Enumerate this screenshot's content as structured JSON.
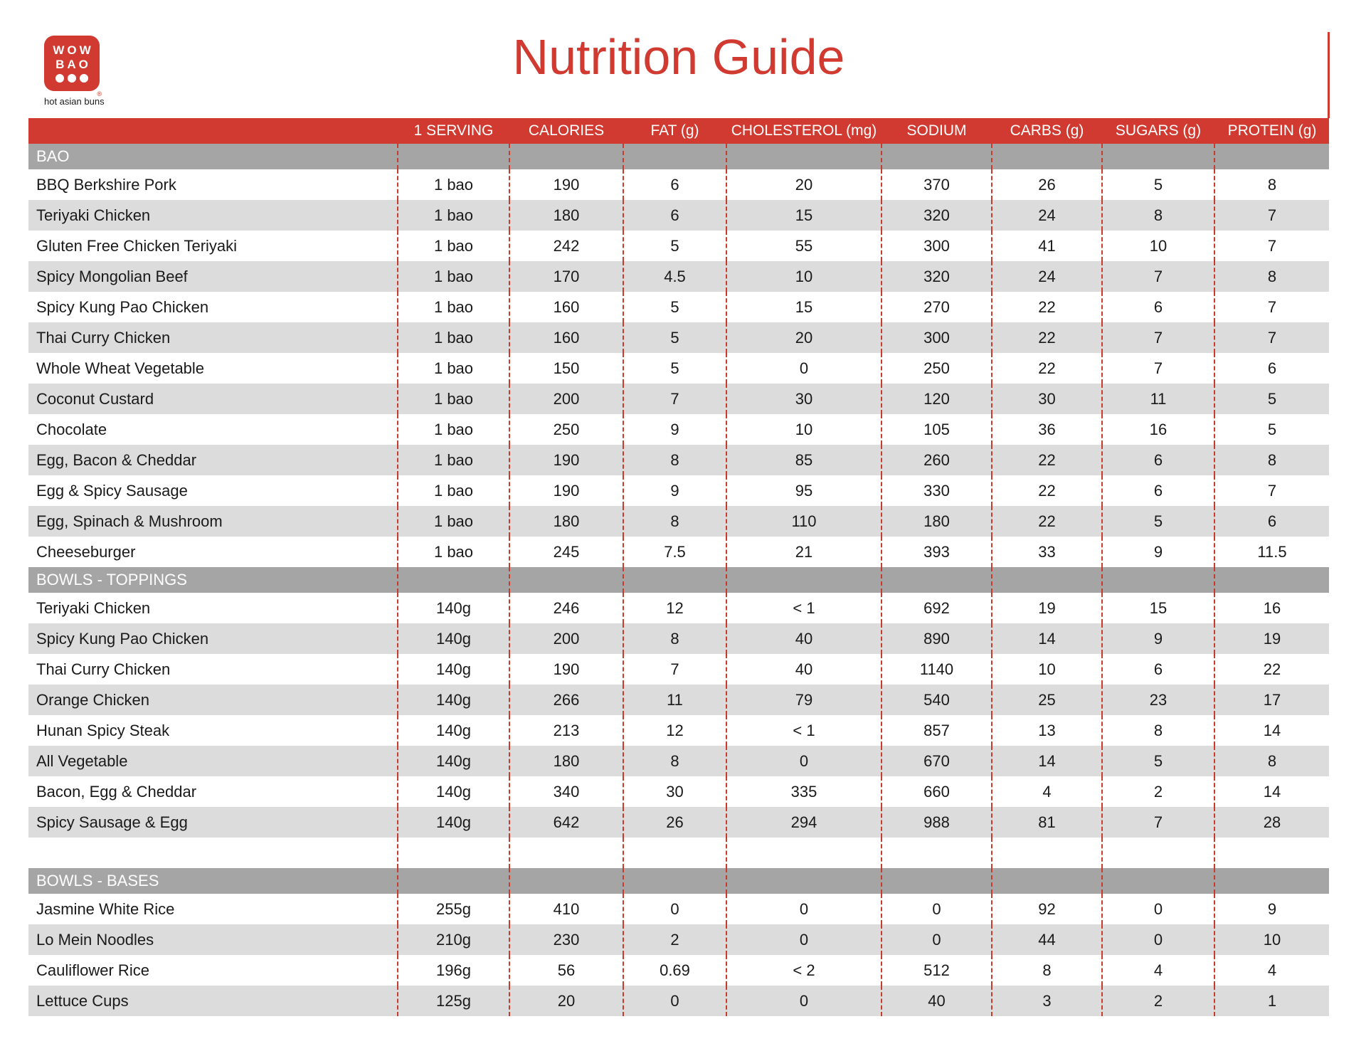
{
  "brand": {
    "logo_line1": "WOW",
    "logo_line2": "BAO",
    "registered_mark": "®",
    "tagline": "hot asian buns"
  },
  "title": "Nutrition Guide",
  "colors": {
    "brand_red": "#d03a30",
    "dashed_line_red": "#c63c2f",
    "section_bar_gray": "#a5a5a5",
    "row_alt_gray": "#dcdcdc"
  },
  "table": {
    "columns": [
      "1 SERVING",
      "CALORIES",
      "FAT (g)",
      "CHOLESTEROL (mg)",
      "SODIUM",
      "CARBS (g)",
      "SUGARS (g)",
      "PROTEIN (g)"
    ],
    "sections": [
      {
        "title": "BAO",
        "rows": [
          {
            "name": "BBQ Berkshire Pork",
            "values": [
              "1 bao",
              "190",
              "6",
              "20",
              "370",
              "26",
              "5",
              "8"
            ]
          },
          {
            "name": "Teriyaki Chicken",
            "values": [
              "1 bao",
              "180",
              "6",
              "15",
              "320",
              "24",
              "8",
              "7"
            ]
          },
          {
            "name": "Gluten Free Chicken Teriyaki",
            "values": [
              "1 bao",
              "242",
              "5",
              "55",
              "300",
              "41",
              "10",
              "7"
            ]
          },
          {
            "name": "Spicy Mongolian Beef",
            "values": [
              "1 bao",
              "170",
              "4.5",
              "10",
              "320",
              "24",
              "7",
              "8"
            ]
          },
          {
            "name": "Spicy Kung Pao Chicken",
            "values": [
              "1 bao",
              "160",
              "5",
              "15",
              "270",
              "22",
              "6",
              "7"
            ]
          },
          {
            "name": "Thai Curry Chicken",
            "values": [
              "1 bao",
              "160",
              "5",
              "20",
              "300",
              "22",
              "7",
              "7"
            ]
          },
          {
            "name": "Whole Wheat Vegetable",
            "values": [
              "1 bao",
              "150",
              "5",
              "0",
              "250",
              "22",
              "7",
              "6"
            ]
          },
          {
            "name": "Coconut Custard",
            "values": [
              "1 bao",
              "200",
              "7",
              "30",
              "120",
              "30",
              "11",
              "5"
            ]
          },
          {
            "name": "Chocolate",
            "values": [
              "1 bao",
              "250",
              "9",
              "10",
              "105",
              "36",
              "16",
              "5"
            ]
          },
          {
            "name": "Egg, Bacon & Cheddar",
            "values": [
              "1 bao",
              "190",
              "8",
              "85",
              "260",
              "22",
              "6",
              "8"
            ]
          },
          {
            "name": "Egg & Spicy Sausage",
            "values": [
              "1 bao",
              "190",
              "9",
              "95",
              "330",
              "22",
              "6",
              "7"
            ]
          },
          {
            "name": "Egg, Spinach & Mushroom",
            "values": [
              "1 bao",
              "180",
              "8",
              "110",
              "180",
              "22",
              "5",
              "6"
            ]
          },
          {
            "name": "Cheeseburger",
            "values": [
              "1 bao",
              "245",
              "7.5",
              "21",
              "393",
              "33",
              "9",
              "11.5"
            ]
          }
        ]
      },
      {
        "title": "BOWLS - TOPPINGS",
        "spacer_after": true,
        "rows": [
          {
            "name": "Teriyaki Chicken",
            "values": [
              "140g",
              "246",
              "12",
              "< 1",
              "692",
              "19",
              "15",
              "16"
            ]
          },
          {
            "name": "Spicy Kung Pao Chicken",
            "values": [
              "140g",
              "200",
              "8",
              "40",
              "890",
              "14",
              "9",
              "19"
            ]
          },
          {
            "name": "Thai Curry Chicken",
            "values": [
              "140g",
              "190",
              "7",
              "40",
              "1140",
              "10",
              "6",
              "22"
            ]
          },
          {
            "name": "Orange Chicken",
            "values": [
              "140g",
              "266",
              "11",
              "79",
              "540",
              "25",
              "23",
              "17"
            ]
          },
          {
            "name": "Hunan Spicy Steak",
            "values": [
              "140g",
              "213",
              "12",
              "< 1",
              "857",
              "13",
              "8",
              "14"
            ]
          },
          {
            "name": "All Vegetable",
            "values": [
              "140g",
              "180",
              "8",
              "0",
              "670",
              "14",
              "5",
              "8"
            ]
          },
          {
            "name": "Bacon, Egg & Cheddar",
            "values": [
              "140g",
              "340",
              "30",
              "335",
              "660",
              "4",
              "2",
              "14"
            ]
          },
          {
            "name": "Spicy Sausage & Egg",
            "values": [
              "140g",
              "642",
              "26",
              "294",
              "988",
              "81",
              "7",
              "28"
            ]
          }
        ]
      },
      {
        "title": "BOWLS - BASES",
        "rows": [
          {
            "name": "Jasmine White Rice",
            "values": [
              "255g",
              "410",
              "0",
              "0",
              "0",
              "92",
              "0",
              "9"
            ]
          },
          {
            "name": "Lo Mein Noodles",
            "values": [
              "210g",
              "230",
              "2",
              "0",
              "0",
              "44",
              "0",
              "10"
            ]
          },
          {
            "name": "Cauliflower Rice",
            "values": [
              "196g",
              "56",
              "0.69",
              "< 2",
              "512",
              "8",
              "4",
              "4"
            ]
          },
          {
            "name": "Lettuce Cups",
            "values": [
              "125g",
              "20",
              "0",
              "0",
              "40",
              "3",
              "2",
              "1"
            ]
          }
        ]
      }
    ]
  }
}
